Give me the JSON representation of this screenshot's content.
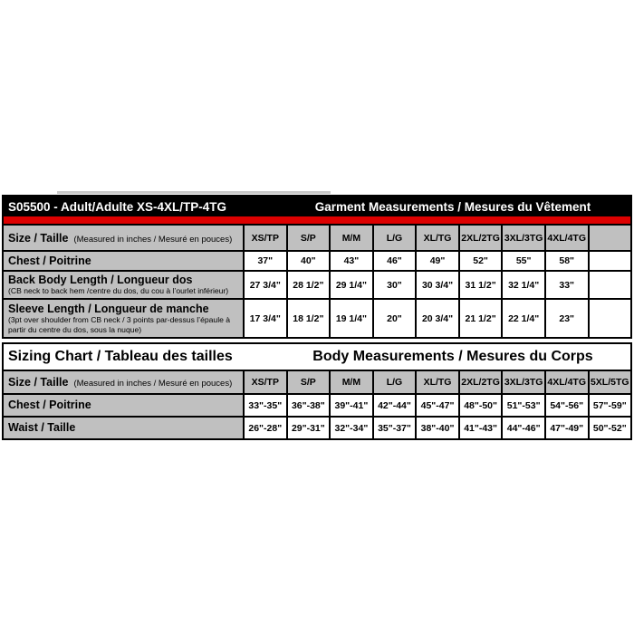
{
  "colors": {
    "header_bg": "#000000",
    "header_text": "#ffffff",
    "accent_red": "#dd0000",
    "cell_gray": "#c0c0c0",
    "border": "#000000"
  },
  "garment_table": {
    "title_left": "S05500 - Adult/Adulte XS-4XL/TP-4TG",
    "title_right": "Garment Measurements / Mesures du Vêtement",
    "size_label": "Size / Taille",
    "size_note": "(Measured in inches / Mesuré en pouces)",
    "columns": [
      "XS/TP",
      "S/P",
      "M/M",
      "L/G",
      "XL/TG",
      "2XL/2TG",
      "3XL/3TG",
      "4XL/4TG",
      ""
    ],
    "rows": [
      {
        "label": "Chest / Poitrine",
        "note": "",
        "values": [
          "37\"",
          "40\"",
          "43\"",
          "46\"",
          "49\"",
          "52\"",
          "55\"",
          "58\"",
          ""
        ]
      },
      {
        "label": "Back Body Length / Longueur dos",
        "note": "(CB neck to back hem /centre du dos, du cou à l’ourlet inférieur)",
        "values": [
          "27 3/4\"",
          "28 1/2\"",
          "29 1/4\"",
          "30\"",
          "30 3/4\"",
          "31 1/2\"",
          "32 1/4\"",
          "33\"",
          ""
        ]
      },
      {
        "label": "Sleeve Length / Longueur de manche",
        "note": "(3pt over shoulder from CB neck / 3 points par-dessus l’épaule à partir du centre du dos, sous la nuque)",
        "values": [
          "17 3/4\"",
          "18 1/2\"",
          "19 1/4\"",
          "20\"",
          "20 3/4\"",
          "21 1/2\"",
          "22 1/4\"",
          "23\"",
          ""
        ]
      }
    ]
  },
  "sizing_table": {
    "title_left": "Sizing Chart / Tableau des tailles",
    "title_right": "Body Measurements / Mesures du Corps",
    "size_label": "Size / Taille",
    "size_note": "(Measured in inches / Mesuré en pouces)",
    "columns": [
      "XS/TP",
      "S/P",
      "M/M",
      "L/G",
      "XL/TG",
      "2XL/2TG",
      "3XL/3TG",
      "4XL/4TG",
      "5XL/5TG"
    ],
    "rows": [
      {
        "label": "Chest / Poitrine",
        "values": [
          "33\"-35\"",
          "36\"-38\"",
          "39\"-41\"",
          "42\"-44\"",
          "45\"-47\"",
          "48\"-50\"",
          "51\"-53\"",
          "54\"-56\"",
          "57\"-59\""
        ]
      },
      {
        "label": "Waist / Taille",
        "values": [
          "26\"-28\"",
          "29\"-31\"",
          "32\"-34\"",
          "35\"-37\"",
          "38\"-40\"",
          "41\"-43\"",
          "44\"-46\"",
          "47\"-49\"",
          "50\"-52\""
        ]
      }
    ]
  }
}
